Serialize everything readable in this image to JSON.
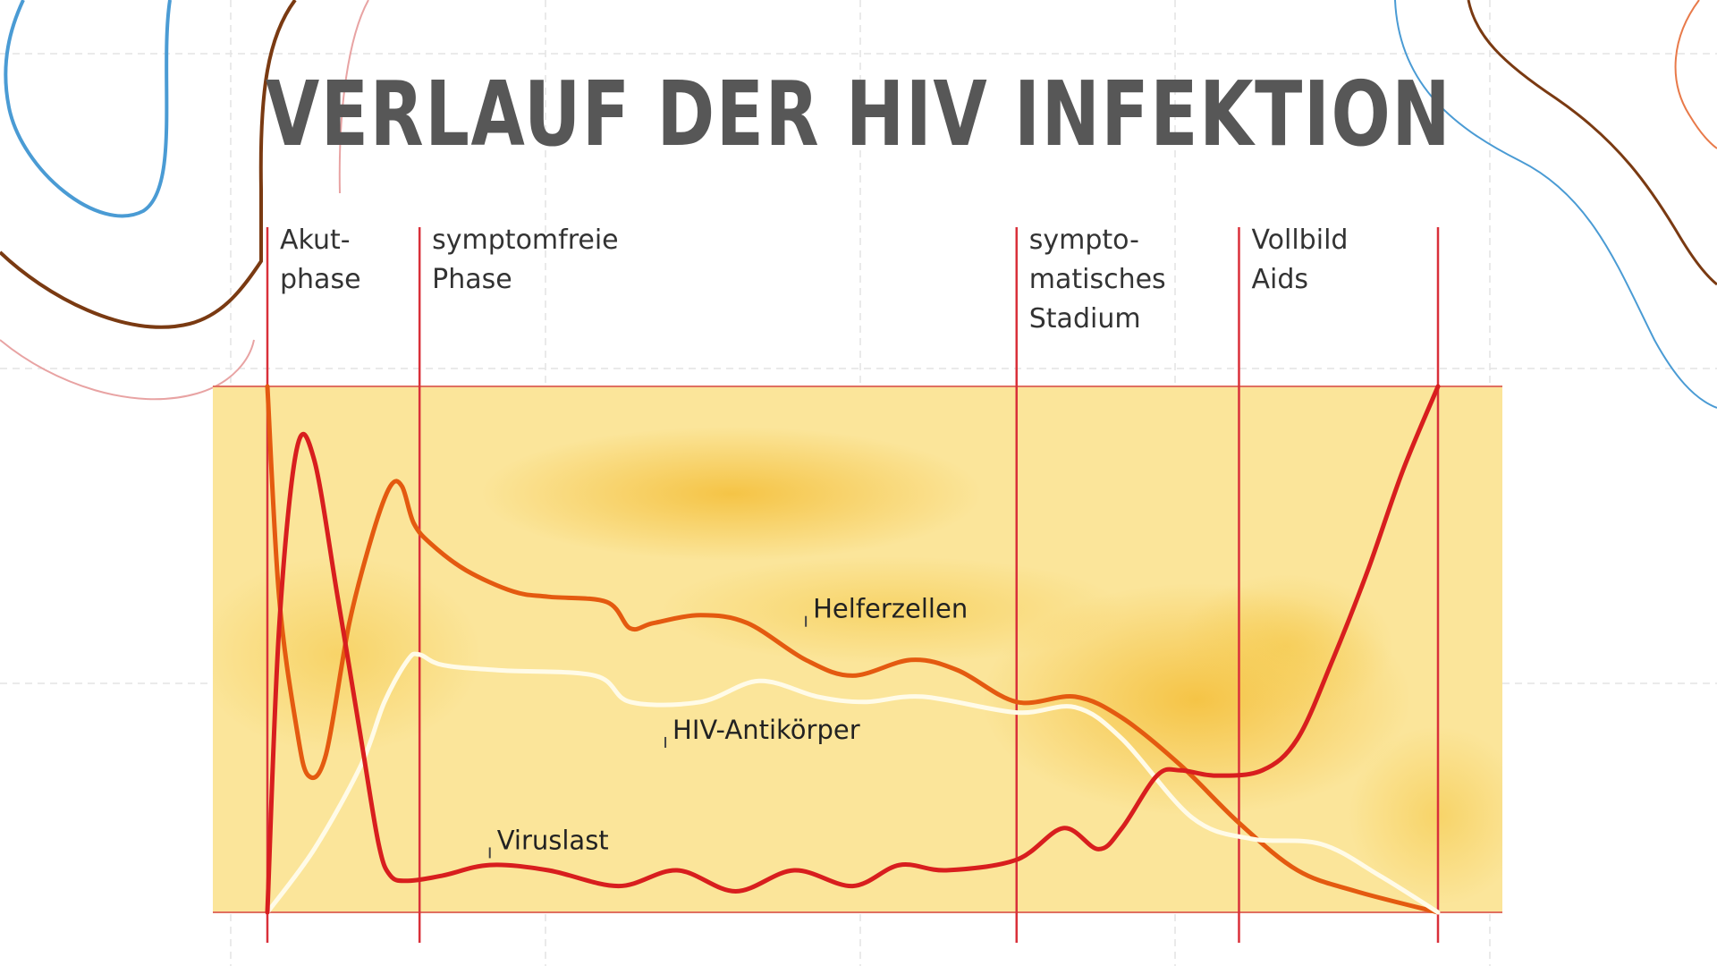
{
  "slide": {
    "title": "Verlauf der HIV Infektion"
  },
  "colors": {
    "accent_blue": "#4a9bd4",
    "accent_brown": "#7a3a12",
    "accent_pink": "#e8a3a3",
    "accent_orange": "#e87a4a",
    "band_fill": "#fbe59a",
    "band_hot": "#f6c440",
    "phase_line": "#d9303a",
    "viruslast": "#d81e1e",
    "helferzellen": "#e45a10",
    "antikoerper": "#fffbe8"
  },
  "chart_data": {
    "type": "line",
    "title": "Verlauf der HIV Infektion",
    "xlabel": "",
    "ylabel": "",
    "xlim": [
      0,
      100
    ],
    "ylim": [
      0,
      100
    ],
    "grid": false,
    "legend": "none",
    "phase_boundaries": [
      0,
      13,
      64,
      83,
      100
    ],
    "phases": [
      {
        "lines": [
          "Akut-",
          "phase"
        ]
      },
      {
        "lines": [
          "symptomfreie",
          "Phase"
        ]
      },
      {
        "lines": [
          "sympto-",
          "matisches",
          "Stadium"
        ]
      },
      {
        "lines": [
          "Vollbild",
          "Aids"
        ]
      }
    ],
    "series": [
      {
        "name": "Helferzellen",
        "color": "#e45a10",
        "label_at": [
          46,
          56
        ],
        "points": [
          [
            0,
            100
          ],
          [
            1,
            60
          ],
          [
            2.5,
            35
          ],
          [
            3.5,
            26
          ],
          [
            5,
            30
          ],
          [
            7,
            55
          ],
          [
            9,
            72
          ],
          [
            10.5,
            81
          ],
          [
            11.5,
            81
          ],
          [
            12.5,
            74
          ],
          [
            14,
            70
          ],
          [
            17,
            65
          ],
          [
            21,
            61
          ],
          [
            24,
            60
          ],
          [
            29,
            59
          ],
          [
            31,
            54
          ],
          [
            33,
            55
          ],
          [
            37,
            56.5
          ],
          [
            41,
            55
          ],
          [
            46,
            48
          ],
          [
            50,
            45
          ],
          [
            55,
            48
          ],
          [
            59,
            46
          ],
          [
            64,
            40
          ],
          [
            69,
            41
          ],
          [
            73,
            37
          ],
          [
            78,
            28
          ],
          [
            83,
            17
          ],
          [
            88,
            8
          ],
          [
            93,
            4
          ],
          [
            100,
            0
          ]
        ]
      },
      {
        "name": "HIV-Antikörper",
        "color": "#fffbe8",
        "label_at": [
          34,
          33
        ],
        "points": [
          [
            0,
            0
          ],
          [
            4,
            12
          ],
          [
            8,
            28
          ],
          [
            10,
            40
          ],
          [
            12,
            48
          ],
          [
            13,
            49
          ],
          [
            15,
            47
          ],
          [
            20,
            46
          ],
          [
            28,
            45
          ],
          [
            31,
            40
          ],
          [
            37,
            40
          ],
          [
            42,
            44
          ],
          [
            47,
            41
          ],
          [
            51,
            40
          ],
          [
            56,
            41
          ],
          [
            64,
            38
          ],
          [
            69,
            39
          ],
          [
            73,
            33
          ],
          [
            79,
            18
          ],
          [
            84,
            14
          ],
          [
            90,
            13
          ],
          [
            95,
            7
          ],
          [
            100,
            0
          ]
        ]
      },
      {
        "name": "Viruslast",
        "color": "#d81e1e",
        "label_at": [
          19,
          12
        ],
        "points": [
          [
            0,
            0
          ],
          [
            1,
            54
          ],
          [
            2.5,
            88
          ],
          [
            4,
            86
          ],
          [
            6,
            60
          ],
          [
            8,
            33
          ],
          [
            9.5,
            13
          ],
          [
            10.5,
            7
          ],
          [
            12,
            6
          ],
          [
            15,
            7
          ],
          [
            19,
            9
          ],
          [
            24,
            8
          ],
          [
            30,
            5
          ],
          [
            35,
            8
          ],
          [
            40,
            4
          ],
          [
            45,
            8
          ],
          [
            50,
            5
          ],
          [
            54,
            9
          ],
          [
            58,
            8
          ],
          [
            64,
            10
          ],
          [
            68,
            16
          ],
          [
            71,
            12
          ],
          [
            73,
            16
          ],
          [
            76,
            26
          ],
          [
            78,
            27
          ],
          [
            81,
            26
          ],
          [
            85,
            27
          ],
          [
            88,
            33
          ],
          [
            91,
            48
          ],
          [
            94,
            65
          ],
          [
            97,
            84
          ],
          [
            100,
            100
          ]
        ]
      }
    ]
  }
}
